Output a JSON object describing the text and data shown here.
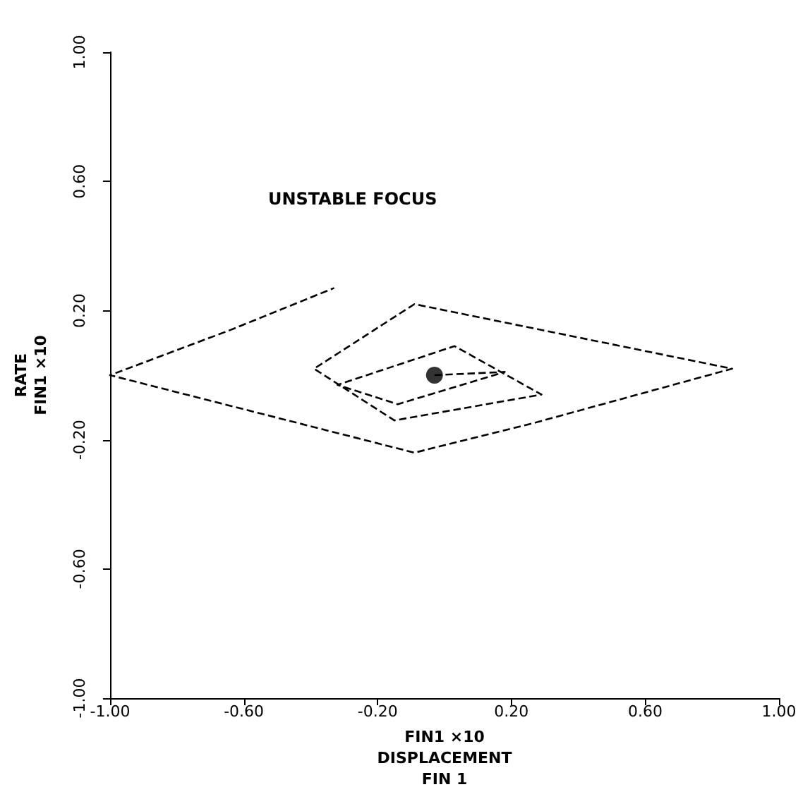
{
  "chart_data": {
    "type": "line",
    "xlabel": "FIN1 ×10\nDISPLACEMENT\nFIN 1",
    "ylabel": "RATE\nFIN1 ×10",
    "annotations": [
      "UNSTABLE FOCUS"
    ],
    "xlim": [
      -1,
      1
    ],
    "ylim": [
      -1,
      1
    ],
    "xticks": [
      {
        "value": -1,
        "label": "-1.00"
      },
      {
        "value": -0.6,
        "label": "-0.60"
      },
      {
        "value": -0.2,
        "label": "-0.20"
      },
      {
        "value": 0.2,
        "label": "0.20"
      },
      {
        "value": 0.6,
        "label": "0.60"
      },
      {
        "value": 1,
        "label": "1.00"
      }
    ],
    "yticks": [
      {
        "value": -1,
        "label": "-1.00"
      },
      {
        "value": -0.6,
        "label": "-0.60"
      },
      {
        "value": -0.2,
        "label": "-0.20"
      },
      {
        "value": 0.2,
        "label": "0.20"
      },
      {
        "value": 0.6,
        "label": "0.60"
      },
      {
        "value": 1,
        "label": "1.00"
      }
    ],
    "grid": false,
    "marker": "none",
    "line_style": "dashed",
    "series": [
      {
        "color": "#000000",
        "x": [
          -0.03,
          0.18,
          -0.14,
          -0.32,
          0.03,
          0.29,
          -0.15,
          -0.39,
          -0.09,
          0.86,
          0.26,
          -0.09,
          -1.0,
          -0.64,
          -0.33
        ],
        "values": [
          0.0,
          0.01,
          -0.09,
          -0.03,
          0.09,
          -0.06,
          -0.14,
          0.02,
          0.22,
          0.02,
          -0.15,
          -0.24,
          0.0,
          0.14,
          0.27
        ]
      },
      {
        "type": "scatter",
        "color": "#000000",
        "marker": "circle",
        "x": [
          -0.03
        ],
        "values": [
          0.0
        ]
      }
    ]
  }
}
